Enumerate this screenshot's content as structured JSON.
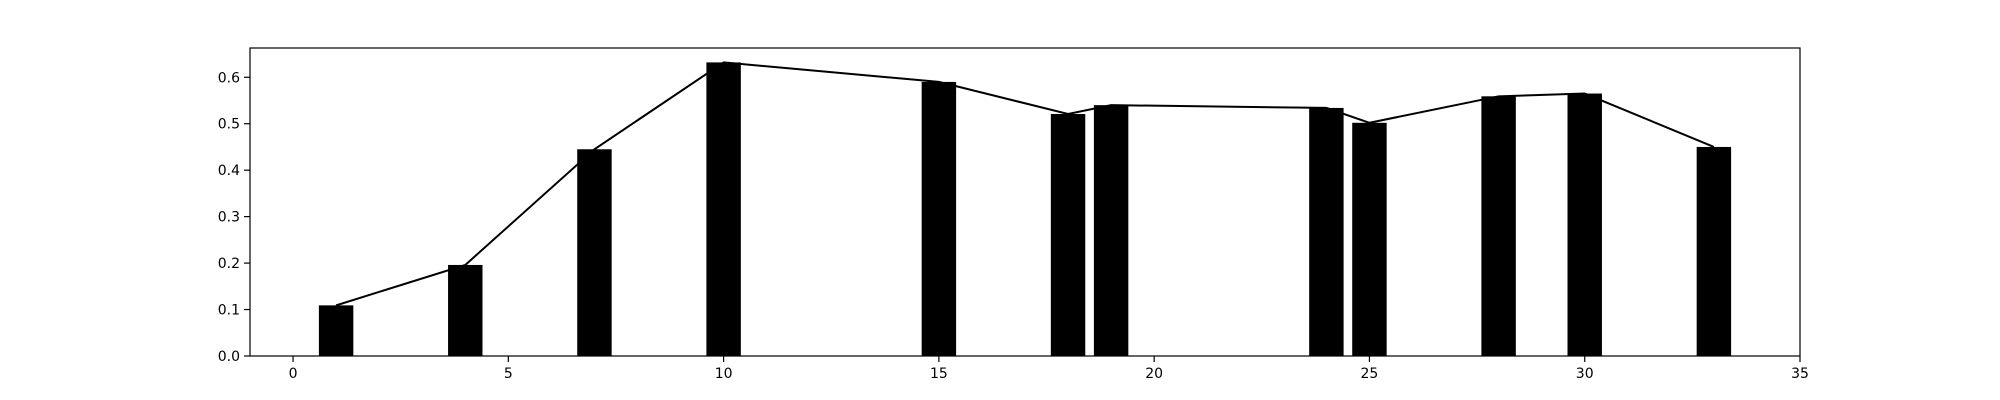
{
  "chart_data": {
    "type": "bar",
    "title": "",
    "xlabel": "",
    "ylabel": "",
    "xlim": [
      -1,
      35
    ],
    "ylim": [
      0,
      0.663
    ],
    "grid": false,
    "bar_color": "#000000",
    "line_color": "#000000",
    "x_ticks": [
      0,
      5,
      10,
      15,
      20,
      25,
      30,
      35
    ],
    "y_ticks": [
      0.0,
      0.1,
      0.2,
      0.3,
      0.4,
      0.5,
      0.6
    ],
    "x_tick_labels": [
      "0",
      "5",
      "10",
      "15",
      "20",
      "25",
      "30",
      "35"
    ],
    "y_tick_labels": [
      "0.0",
      "0.1",
      "0.2",
      "0.3",
      "0.4",
      "0.5",
      "0.6"
    ],
    "bar_width": 0.8,
    "x": [
      1,
      4,
      7,
      10,
      15,
      18,
      19,
      24,
      25,
      28,
      30,
      33
    ],
    "values": [
      0.109,
      0.196,
      0.445,
      0.632,
      0.59,
      0.521,
      0.54,
      0.534,
      0.502,
      0.559,
      0.565,
      0.45
    ]
  }
}
